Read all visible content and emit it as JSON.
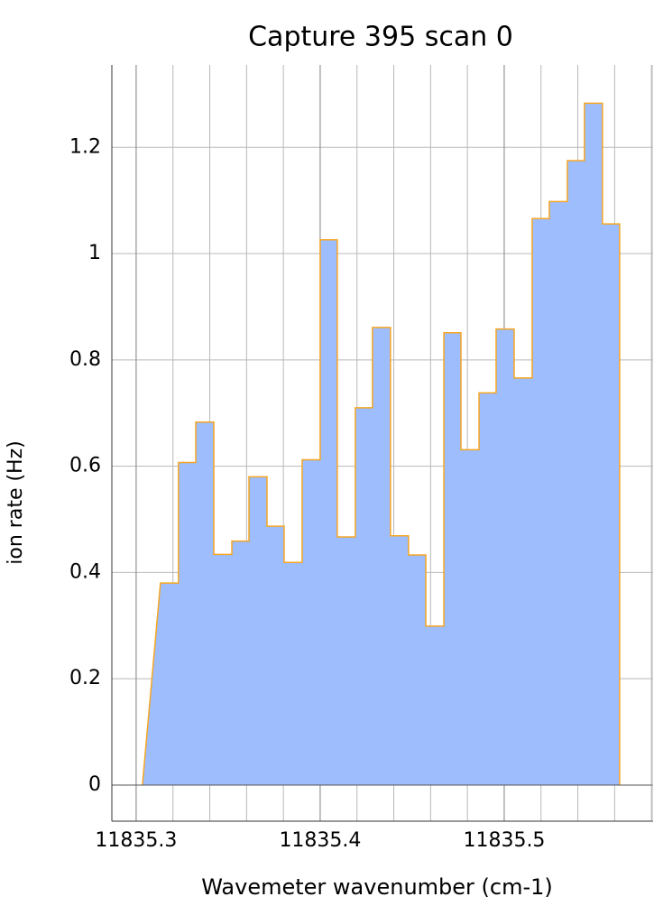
{
  "chart_data": {
    "type": "step-area",
    "title": "Capture 395 scan 0",
    "xlabel": "Wavemeter wavenumber (cm-1)",
    "ylabel": "ion rate (Hz)",
    "x": [
      11835.3034,
      11835.3132,
      11835.323,
      11835.3324,
      11835.3422,
      11835.352,
      11835.3613,
      11835.3711,
      11835.3804,
      11835.3902,
      11835.4,
      11835.4093,
      11835.4191,
      11835.4284,
      11835.4382,
      11835.448,
      11835.4574,
      11835.4672,
      11835.4765,
      11835.4863,
      11835.4956,
      11835.5054,
      11835.5152,
      11835.5245,
      11835.5343,
      11835.5436,
      11835.5534,
      11835.5627
    ],
    "values": [
      0,
      0.38,
      0.607,
      0.683,
      0.434,
      0.459,
      0.58,
      0.487,
      0.419,
      0.612,
      1.026,
      0.467,
      0.71,
      0.861,
      0.469,
      0.433,
      0.299,
      0.851,
      0.631,
      0.738,
      0.858,
      0.766,
      1.066,
      1.098,
      1.175,
      1.283,
      1.056,
      0
    ],
    "fill_color": "#9dbdfd",
    "line_color": "#f5a623",
    "xlim": [
      11835.2868,
      11835.5809
    ],
    "ylim": [
      -0.068,
      1.355
    ],
    "xticks": [
      11835.3,
      11835.4,
      11835.5
    ],
    "yticks": [
      0,
      0.2,
      0.4,
      0.6,
      0.8,
      1,
      1.2
    ],
    "grid": true
  }
}
